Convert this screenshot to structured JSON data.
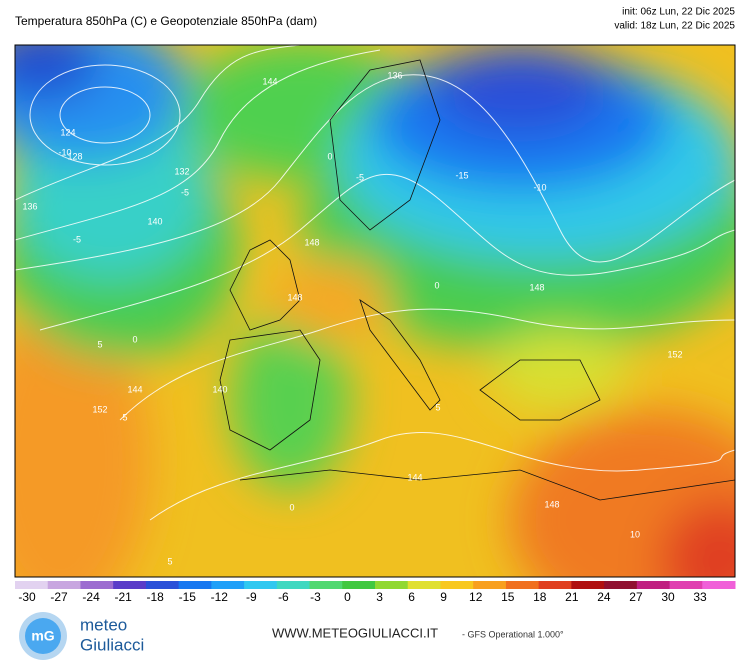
{
  "header": {
    "title": "Temperatura 850hPa (C) e Geopotenziale 850hPa (dam)",
    "init": "init: 06z Lun, 22 Dic 2025",
    "valid": "valid: 18z Lun, 22 Dic 2025"
  },
  "map": {
    "contour_labels": [
      "124",
      "128",
      "132",
      "136",
      "140",
      "144",
      "148",
      "144",
      "140",
      "136",
      "148",
      "152",
      "144",
      "148",
      "152",
      "-10",
      "-5",
      "0",
      "5",
      "0",
      "-5",
      "-10",
      "-15",
      "0",
      "5",
      "10",
      "5",
      "0",
      "-5",
      "5",
      "148"
    ]
  },
  "colorbar": {
    "labels": [
      -30,
      -27,
      -24,
      -21,
      -18,
      -15,
      -12,
      -9,
      -6,
      -3,
      0,
      3,
      6,
      9,
      12,
      15,
      18,
      21,
      24,
      27,
      30,
      33
    ],
    "colors": [
      "#e2d2f0",
      "#c8a6e0",
      "#9c6cd0",
      "#5a3cc8",
      "#2a50d8",
      "#1878f0",
      "#20a0f8",
      "#30c8f0",
      "#40d8c0",
      "#50d870",
      "#40c840",
      "#90d830",
      "#e0e030",
      "#f8c820",
      "#f8a020",
      "#f07020",
      "#e04020",
      "#b01010",
      "#901030",
      "#c02080",
      "#e040b0",
      "#f060d8"
    ]
  },
  "footer": {
    "brand_top": "meteo",
    "brand_bottom": "Giuliacci",
    "url": "WWW.METEOGIULIACCI.IT",
    "model": "- GFS Operational 1.000°"
  }
}
